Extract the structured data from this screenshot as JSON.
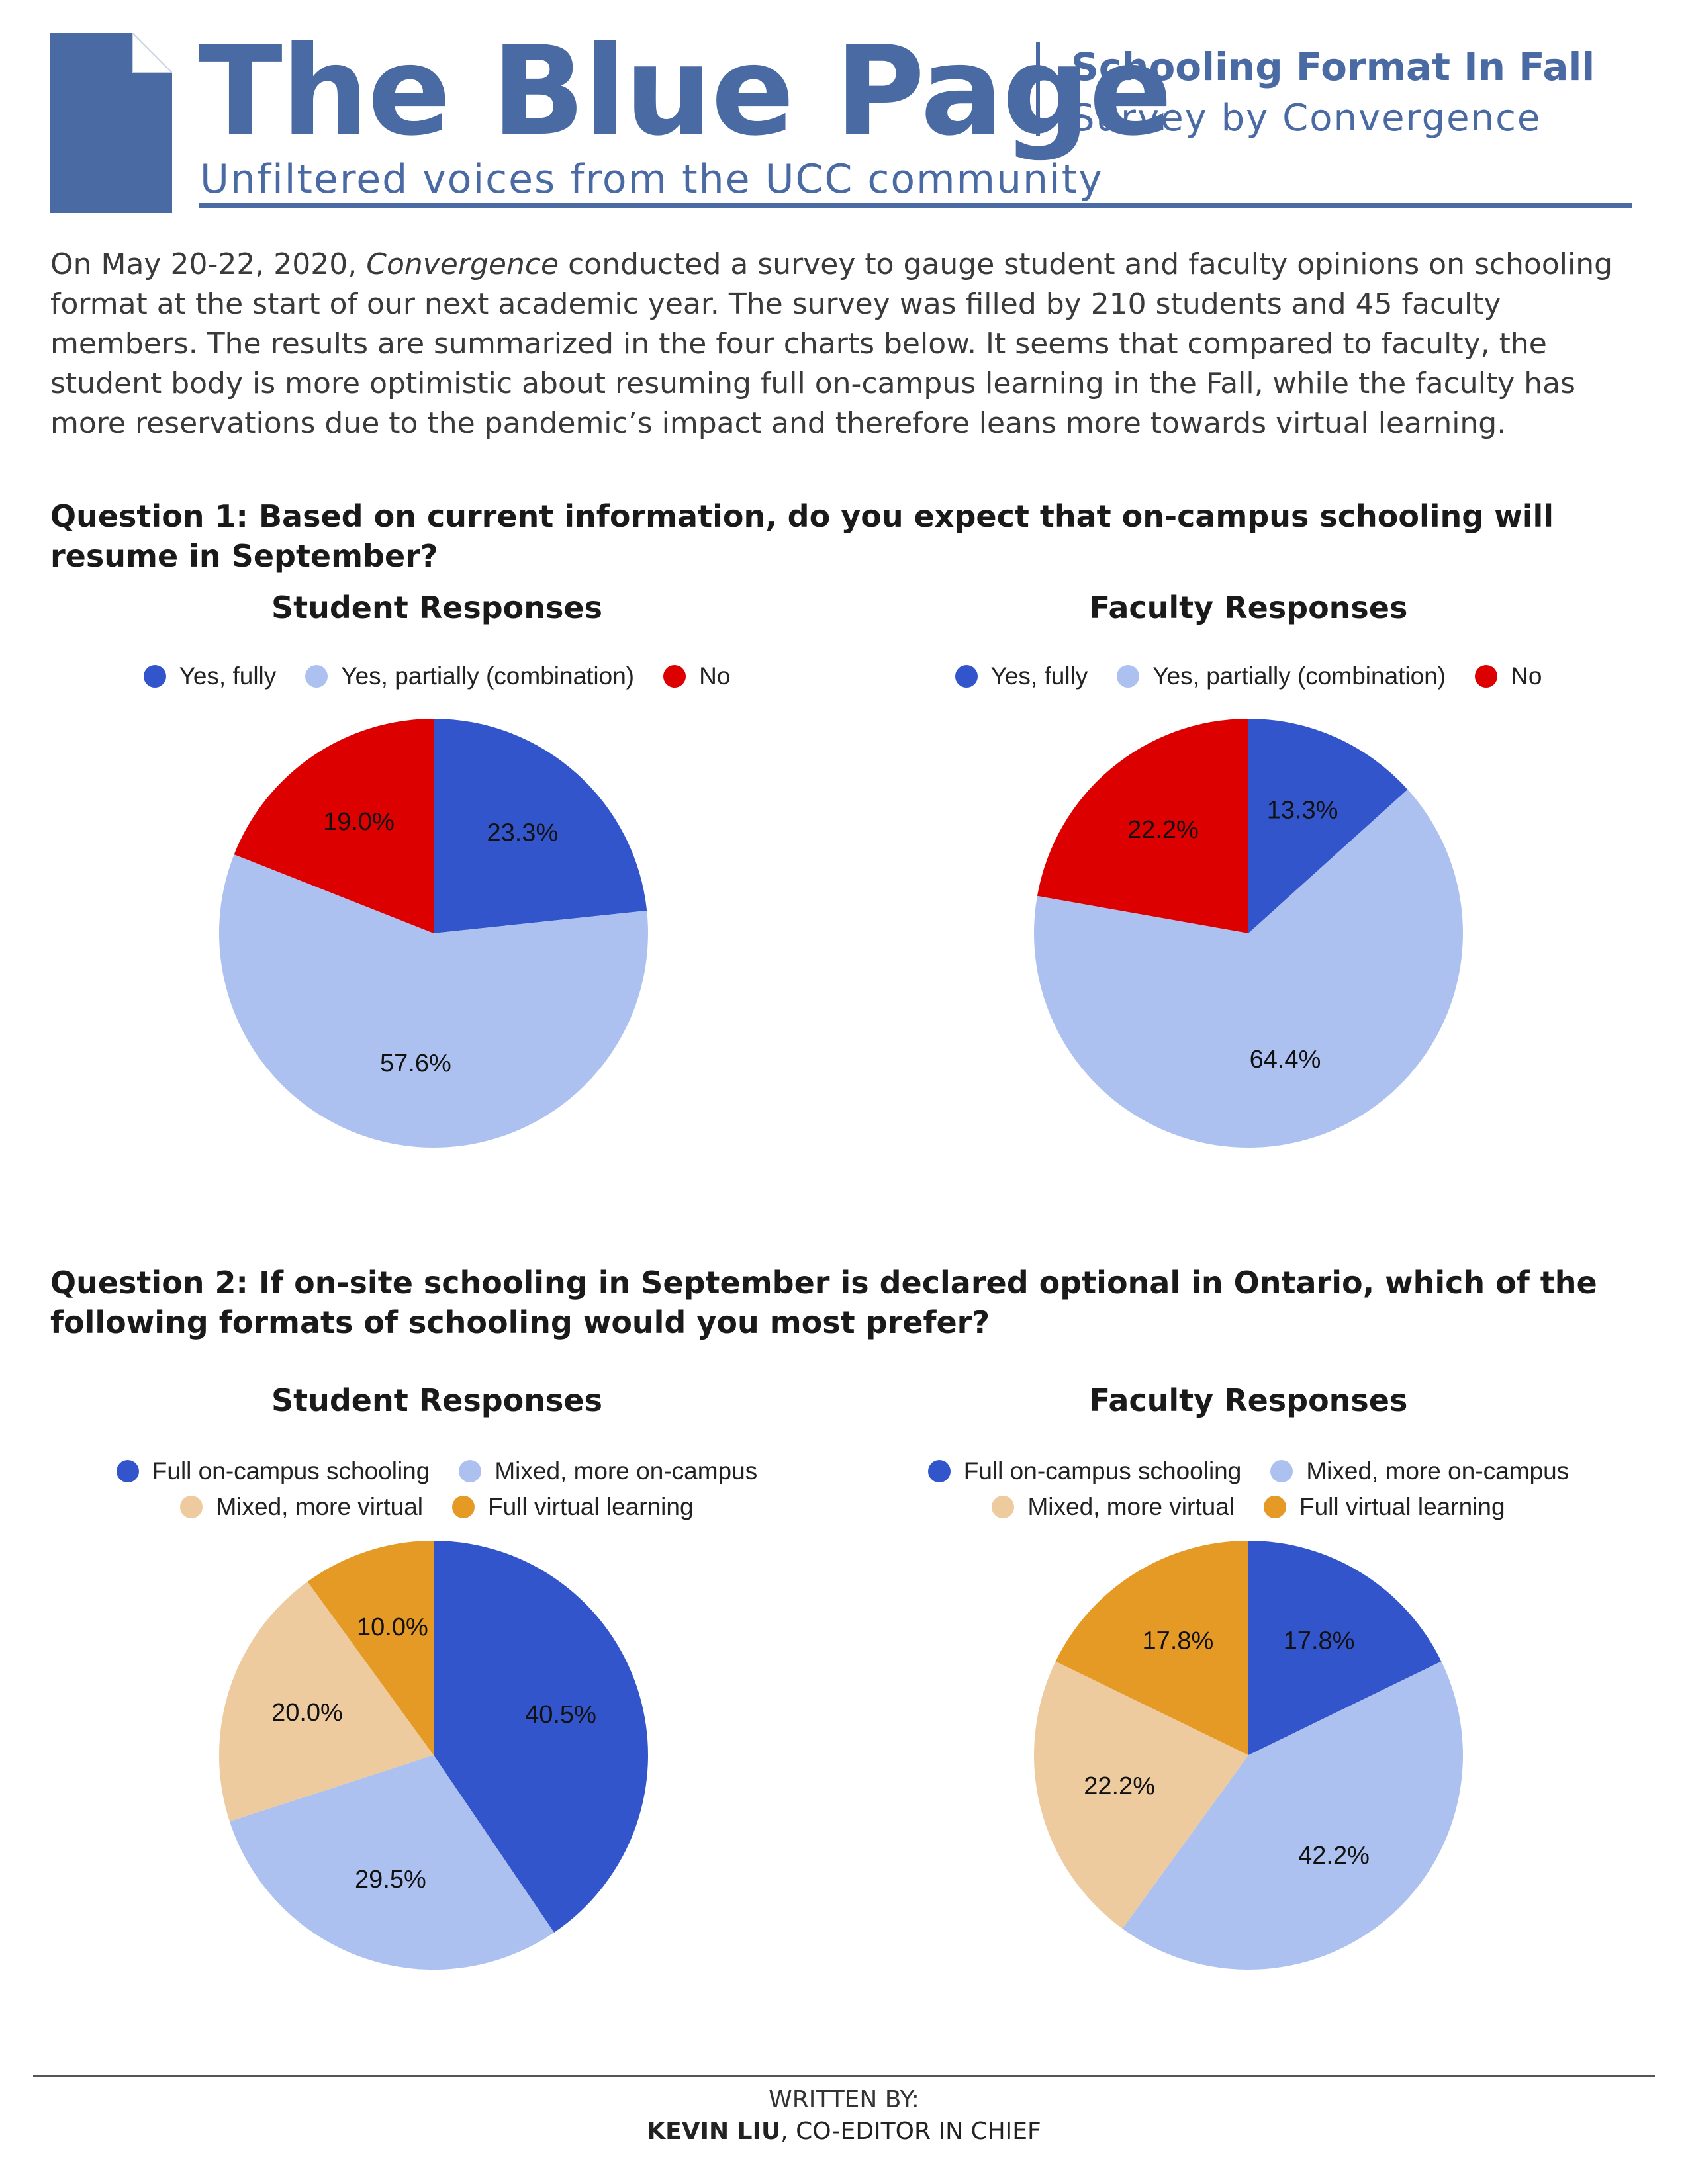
{
  "masthead": {
    "title": "The Blue Page",
    "tagline": "Unfiltered voices from the UCC community",
    "topic": "Schooling Format In Fall",
    "subtopic": "Survey by Convergence",
    "brand_color": "#4a6aa3"
  },
  "intro": {
    "before_em": "On May 20-22, 2020, ",
    "em": "Convergence",
    "after_em": " conducted a survey to gauge student and faculty opinions on schooling format at the start of our next academic year. The survey was filled by 210 students and 45 faculty members. The results are summarized in the four charts below. It seems that compared to faculty, the student body is more optimistic about resuming full on-campus learning in the Fall, while the faculty has more reservations due to the pandemic’s impact and therefore leans more towards virtual learning."
  },
  "questions": [
    {
      "text": "Question 1: Based on current information, do you expect that on-campus schooling will resume in September?"
    },
    {
      "text": "Question 2: If on-site schooling in September is declared optional in Ontario, which of the following formats of schooling would you most prefer?"
    }
  ],
  "chart_data": [
    {
      "type": "pie",
      "title": "Student Responses",
      "question": 1,
      "categories": [
        "Yes, fully",
        "Yes, partially (combination)",
        "No"
      ],
      "values": [
        23.3,
        57.6,
        19.0
      ],
      "labels": [
        "23.3%",
        "57.6%",
        "19.0%"
      ],
      "colors": [
        "#3355cc",
        "#adc1f0",
        "#dd0000"
      ],
      "legend": "top"
    },
    {
      "type": "pie",
      "title": "Faculty Responses",
      "question": 1,
      "categories": [
        "Yes, fully",
        "Yes, partially (combination)",
        "No"
      ],
      "values": [
        13.3,
        64.4,
        22.2
      ],
      "labels": [
        "13.3%",
        "64.4%",
        "22.2%"
      ],
      "colors": [
        "#3355cc",
        "#adc1f0",
        "#dd0000"
      ],
      "legend": "top"
    },
    {
      "type": "pie",
      "title": "Student Responses",
      "question": 2,
      "categories": [
        "Full on-campus schooling",
        "Mixed, more on-campus",
        "Mixed, more virtual",
        "Full virtual learning"
      ],
      "values": [
        40.5,
        29.5,
        20.0,
        10.0
      ],
      "labels": [
        "40.5%",
        "29.5%",
        "20.0%",
        "10.0%"
      ],
      "colors": [
        "#3355cc",
        "#adc1f0",
        "#edcb9e",
        "#e69a26"
      ],
      "legend": "top"
    },
    {
      "type": "pie",
      "title": "Faculty Responses",
      "question": 2,
      "categories": [
        "Full on-campus schooling",
        "Mixed, more on-campus",
        "Mixed, more virtual",
        "Full virtual learning"
      ],
      "values": [
        17.8,
        42.2,
        22.2,
        17.8
      ],
      "labels": [
        "17.8%",
        "42.2%",
        "22.2%",
        "17.8%"
      ],
      "colors": [
        "#3355cc",
        "#adc1f0",
        "#edcb9e",
        "#e69a26"
      ],
      "legend": "top"
    }
  ],
  "footer": {
    "label": "WRITTEN BY:",
    "author": "KEVIN LIU",
    "role": ", CO-EDITOR IN CHIEF"
  }
}
